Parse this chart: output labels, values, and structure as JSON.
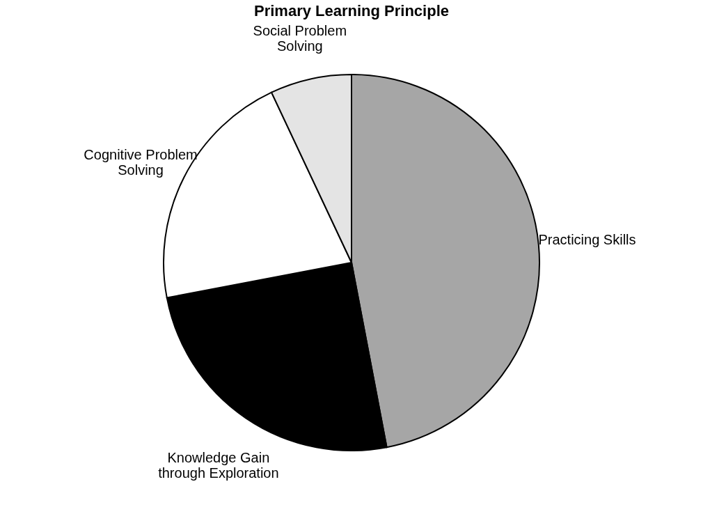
{
  "chart_data": {
    "type": "pie",
    "title": "Primary Learning Principle",
    "categories": [
      "Practicing Skills",
      "Knowledge Gain\nthrough Exploration",
      "Cognitive Problem\nSolving",
      "Social Problem\nSolving"
    ],
    "values": [
      47,
      25,
      21,
      7
    ],
    "colors": [
      "#a6a6a6",
      "#000000",
      "#ffffff",
      "#e4e4e4"
    ],
    "legend": false
  }
}
